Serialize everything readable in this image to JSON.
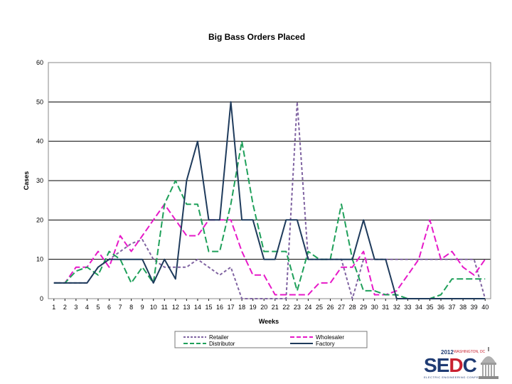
{
  "chart_data": {
    "type": "line",
    "title": "Big Bass Orders Placed",
    "xlabel": "Weeks",
    "ylabel": "Cases",
    "ylim": [
      0,
      60
    ],
    "yticks": [
      "0",
      "10",
      "20",
      "30",
      "40",
      "50",
      "60"
    ],
    "grid": true,
    "legend_position": "bottom",
    "categories": [
      "1",
      "2",
      "3",
      "4",
      "5",
      "6",
      "7",
      "8",
      "9",
      "10",
      "11",
      "12",
      "13",
      "14",
      "15",
      "16",
      "17",
      "18",
      "19",
      "20",
      "21",
      "22",
      "23",
      "24",
      "25",
      "26",
      "27",
      "28",
      "29",
      "30",
      "31",
      "32",
      "33",
      "34",
      "35",
      "36",
      "37",
      "38",
      "39",
      "40"
    ],
    "series": [
      {
        "name": "Retailer",
        "color": "#8064a2",
        "dash": "short",
        "values": [
          4,
          4,
          4,
          4,
          8,
          10,
          12,
          14,
          15,
          10,
          8,
          8,
          8,
          10,
          8,
          6,
          8,
          0,
          0,
          0,
          0,
          0,
          50,
          10,
          10,
          10,
          10,
          0,
          10,
          10,
          10,
          10,
          10,
          10,
          10,
          10,
          10,
          10,
          10,
          0
        ]
      },
      {
        "name": "Wholesaler",
        "color": "#e619c8",
        "dash": "long",
        "values": [
          4,
          4,
          8,
          8,
          12,
          8,
          16,
          12,
          16,
          20,
          24,
          20,
          16,
          16,
          20,
          20,
          20,
          12,
          6,
          6,
          1,
          1,
          1,
          1,
          4,
          4,
          8,
          8,
          12,
          1,
          1,
          2,
          6,
          10,
          20,
          10,
          12,
          8,
          6,
          10
        ]
      },
      {
        "name": "Distributor",
        "color": "#1fa05a",
        "dash": "long",
        "values": [
          4,
          4,
          7,
          8,
          6,
          12,
          10,
          4,
          8,
          4,
          24,
          30,
          24,
          24,
          12,
          12,
          24,
          40,
          24,
          12,
          12,
          12,
          2,
          12,
          10,
          10,
          24,
          10,
          2,
          2,
          1,
          1,
          0,
          0,
          0,
          1,
          5,
          5,
          5,
          5
        ]
      },
      {
        "name": "Factory",
        "color": "#1f3b5c",
        "dash": "solid",
        "values": [
          4,
          4,
          4,
          4,
          8,
          10,
          10,
          10,
          10,
          4,
          10,
          5,
          30,
          40,
          20,
          20,
          50,
          20,
          20,
          10,
          10,
          20,
          20,
          10,
          10,
          10,
          10,
          10,
          20,
          10,
          10,
          0,
          0,
          0,
          0,
          0,
          0,
          0,
          0,
          0
        ]
      }
    ]
  },
  "logo": {
    "year": "2012",
    "location": "WASHINGTON, DC",
    "brand_s": "S",
    "brand_e": "E",
    "brand_d": "D",
    "brand_c": "C",
    "tagline": "ELECTRIC ENGINEERING CONFERENCE"
  }
}
